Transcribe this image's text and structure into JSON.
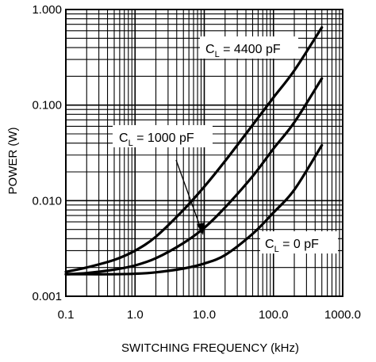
{
  "chart_data": {
    "type": "line",
    "title": "",
    "xlabel": "SWITCHING FREQUENCY (kHz)",
    "ylabel": "POWER (W)",
    "xscale": "log",
    "yscale": "log",
    "xlim": [
      0.1,
      1000
    ],
    "ylim": [
      0.001,
      1
    ],
    "grid": true,
    "xtick_labels": [
      "0.1",
      "1.0",
      "10.0",
      "100.0",
      "1000.0"
    ],
    "ytick_labels": [
      "0.001",
      "0.010",
      "0.100",
      "1.000"
    ],
    "series": [
      {
        "name": "CL = 4400 pF",
        "label_prefix": "C",
        "label_sub": "L",
        "label_suffix": " = 4400 pF",
        "x": [
          0.1,
          0.2,
          0.5,
          1,
          2,
          5,
          10,
          20,
          50,
          100,
          200,
          500
        ],
        "y": [
          0.0018,
          0.002,
          0.0024,
          0.003,
          0.0042,
          0.008,
          0.014,
          0.026,
          0.062,
          0.12,
          0.23,
          0.65
        ]
      },
      {
        "name": "CL = 1000 pF",
        "label_prefix": "C",
        "label_sub": "L",
        "label_suffix": " = 1000 pF",
        "x": [
          0.1,
          0.2,
          0.5,
          1,
          2,
          5,
          10,
          20,
          50,
          100,
          200,
          500
        ],
        "y": [
          0.0017,
          0.00175,
          0.0019,
          0.0021,
          0.0025,
          0.0036,
          0.0052,
          0.0085,
          0.018,
          0.035,
          0.066,
          0.19
        ]
      },
      {
        "name": "CL = 0 pF",
        "label_prefix": "C",
        "label_sub": "L",
        "label_suffix": " = 0 pF",
        "x": [
          0.1,
          0.2,
          0.5,
          1,
          2,
          5,
          10,
          20,
          50,
          100,
          200,
          500
        ],
        "y": [
          0.0017,
          0.0017,
          0.0017,
          0.00172,
          0.00178,
          0.00195,
          0.0022,
          0.0027,
          0.0045,
          0.0075,
          0.013,
          0.038
        ]
      }
    ]
  }
}
